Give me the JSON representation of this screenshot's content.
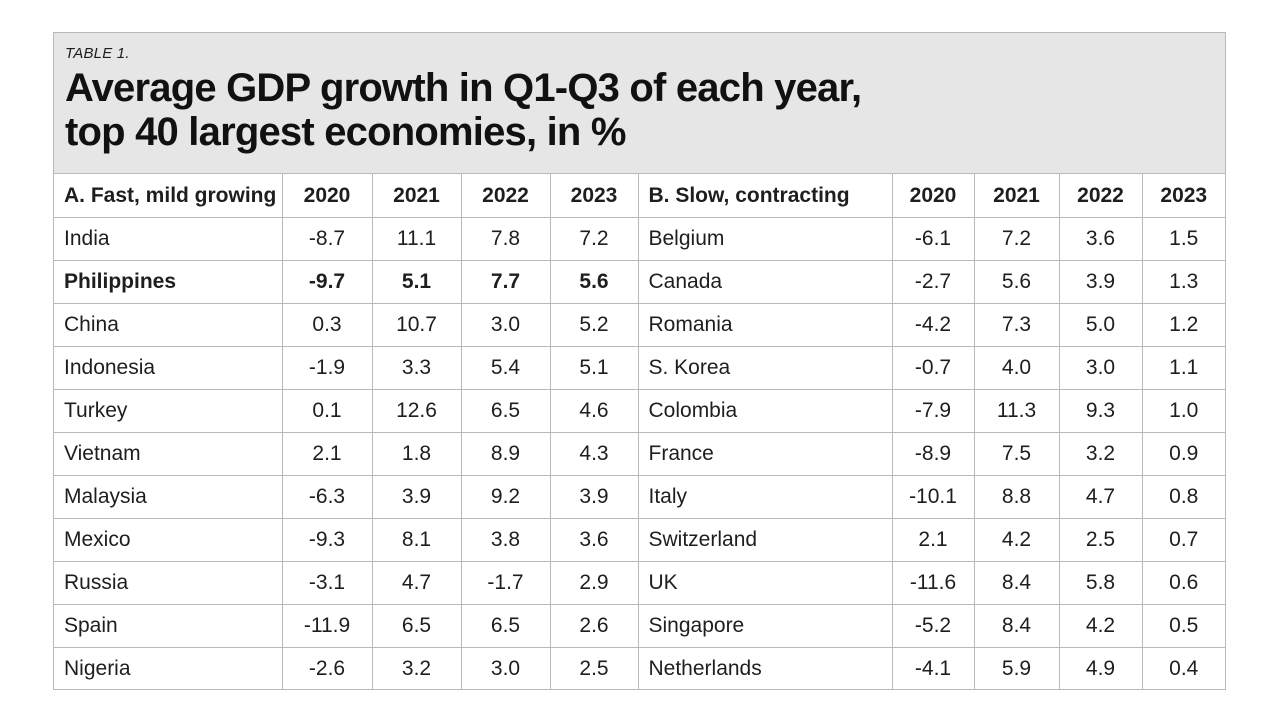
{
  "table_label": "TABLE 1.",
  "title_line1": "Average GDP growth in Q1-Q3 of each year,",
  "title_line2": "top 40 largest economies, in %",
  "section_a": {
    "heading": "A. Fast, mild growing",
    "years": [
      "2020",
      "2021",
      "2022",
      "2023"
    ],
    "rows": [
      {
        "country": "India",
        "values": [
          "-8.7",
          "11.1",
          "7.8",
          "7.2"
        ]
      },
      {
        "country": "Philippines",
        "values": [
          "-9.7",
          "5.1",
          "7.7",
          "5.6"
        ],
        "highlight": true
      },
      {
        "country": "China",
        "values": [
          "0.3",
          "10.7",
          "3.0",
          "5.2"
        ]
      },
      {
        "country": "Indonesia",
        "values": [
          "-1.9",
          "3.3",
          "5.4",
          "5.1"
        ]
      },
      {
        "country": "Turkey",
        "values": [
          "0.1",
          "12.6",
          "6.5",
          "4.6"
        ]
      },
      {
        "country": "Vietnam",
        "values": [
          "2.1",
          "1.8",
          "8.9",
          "4.3"
        ]
      },
      {
        "country": "Malaysia",
        "values": [
          "-6.3",
          "3.9",
          "9.2",
          "3.9"
        ]
      },
      {
        "country": "Mexico",
        "values": [
          "-9.3",
          "8.1",
          "3.8",
          "3.6"
        ]
      },
      {
        "country": "Russia",
        "values": [
          "-3.1",
          "4.7",
          "-1.7",
          "2.9"
        ]
      },
      {
        "country": "Spain",
        "values": [
          "-11.9",
          "6.5",
          "6.5",
          "2.6"
        ]
      },
      {
        "country": "Nigeria",
        "values": [
          "-2.6",
          "3.2",
          "3.0",
          "2.5"
        ]
      }
    ]
  },
  "section_b": {
    "heading": "B. Slow, contracting",
    "years": [
      "2020",
      "2021",
      "2022",
      "2023"
    ],
    "rows": [
      {
        "country": "Belgium",
        "values": [
          "-6.1",
          "7.2",
          "3.6",
          "1.5"
        ]
      },
      {
        "country": "Canada",
        "values": [
          "-2.7",
          "5.6",
          "3.9",
          "1.3"
        ]
      },
      {
        "country": "Romania",
        "values": [
          "-4.2",
          "7.3",
          "5.0",
          "1.2"
        ]
      },
      {
        "country": "S. Korea",
        "values": [
          "-0.7",
          "4.0",
          "3.0",
          "1.1"
        ]
      },
      {
        "country": "Colombia",
        "values": [
          "-7.9",
          "11.3",
          "9.3",
          "1.0"
        ]
      },
      {
        "country": "France",
        "values": [
          "-8.9",
          "7.5",
          "3.2",
          "0.9"
        ]
      },
      {
        "country": "Italy",
        "values": [
          "-10.1",
          "8.8",
          "4.7",
          "0.8"
        ]
      },
      {
        "country": "Switzerland",
        "values": [
          "2.1",
          "4.2",
          "2.5",
          "0.7"
        ]
      },
      {
        "country": "UK",
        "values": [
          "-11.6",
          "8.4",
          "5.8",
          "0.6"
        ]
      },
      {
        "country": "Singapore",
        "values": [
          "-5.2",
          "8.4",
          "4.2",
          "0.5"
        ]
      },
      {
        "country": "Netherlands",
        "values": [
          "-4.1",
          "5.9",
          "4.9",
          "0.4"
        ]
      }
    ]
  },
  "colors": {
    "header_bg": "#e6e6e6",
    "grid_line": "#b9b9b9",
    "text": "#1e1e1e"
  }
}
